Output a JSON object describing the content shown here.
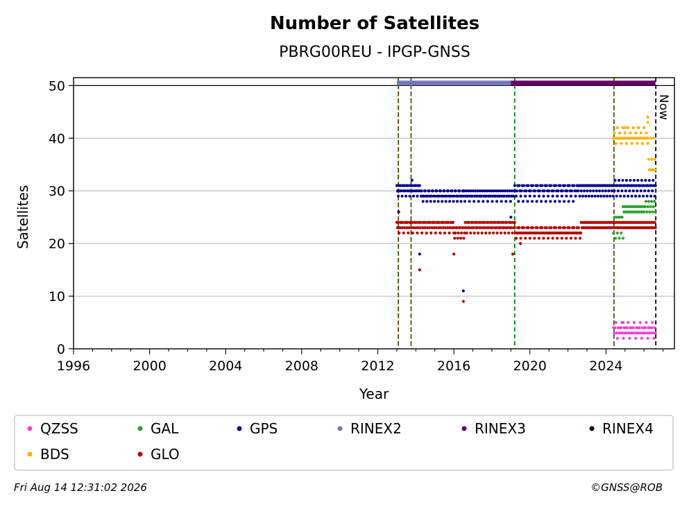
{
  "chart_data": {
    "type": "scatter",
    "title": "Number of Satellites",
    "subtitle": "PBRG00REU - IPGP-GNSS",
    "xlabel": "Year",
    "ylabel": "Satellites",
    "xlim": [
      1996,
      2027.6
    ],
    "ylim": [
      0,
      51.5
    ],
    "x_ticks": [
      "1996",
      "2000",
      "2004",
      "2008",
      "2012",
      "2016",
      "2020",
      "2024"
    ],
    "y_ticks": [
      "0",
      "10",
      "20",
      "30",
      "40",
      "50"
    ],
    "grid": "y",
    "now_label": "Now",
    "now_x": 2026.62,
    "reference_line_y": 50,
    "event_lines": [
      {
        "x": 2013.08,
        "kind": "station-change"
      },
      {
        "x": 2013.75,
        "kind": "station-change"
      },
      {
        "x": 2019.2,
        "kind": "receiver-change"
      },
      {
        "x": 2024.42,
        "kind": "station-change"
      }
    ],
    "rinex_bars": [
      {
        "name": "RINEX2",
        "x_start": 2013.0,
        "x_end": 2019.0,
        "y": 51
      },
      {
        "name": "RINEX3",
        "x_start": 2019.0,
        "x_end": 2026.6,
        "y": 51
      }
    ],
    "series": [
      {
        "name": "QZSS",
        "color": "#ee44cc",
        "segments": [
          {
            "x_start": 2024.4,
            "x_end": 2026.6,
            "step": 0.04,
            "values": [
              4,
              3,
              4,
              5,
              3,
              2,
              4,
              3
            ]
          }
        ],
        "points": [
          [
            2024.9,
            5
          ]
        ]
      },
      {
        "name": "GAL",
        "color": "#2ca02c",
        "segments": [
          {
            "x_start": 2024.4,
            "x_end": 2024.9,
            "step": 0.05,
            "values": [
              22,
              25,
              21,
              25
            ]
          },
          {
            "x_start": 2024.9,
            "x_end": 2026.0,
            "step": 0.05,
            "values": [
              27,
              26,
              27,
              26
            ]
          },
          {
            "x_start": 2026.0,
            "x_end": 2026.6,
            "step": 0.05,
            "values": [
              26,
              27,
              28
            ]
          }
        ],
        "points": []
      },
      {
        "name": "GPS",
        "color": "#00008b",
        "segments": [
          {
            "x_start": 2013.0,
            "x_end": 2014.3,
            "step": 0.04,
            "values": [
              31,
              30,
              29,
              31,
              30
            ]
          },
          {
            "x_start": 2014.3,
            "x_end": 2016.5,
            "step": 0.04,
            "values": [
              30,
              29,
              28,
              29,
              30
            ]
          },
          {
            "x_start": 2016.5,
            "x_end": 2019.2,
            "step": 0.04,
            "values": [
              29,
              30,
              28,
              29,
              30,
              29
            ]
          },
          {
            "x_start": 2019.2,
            "x_end": 2022.5,
            "step": 0.04,
            "values": [
              31,
              30,
              29,
              30,
              31,
              28
            ]
          },
          {
            "x_start": 2022.5,
            "x_end": 2024.4,
            "step": 0.04,
            "values": [
              31,
              30,
              31,
              29
            ]
          },
          {
            "x_start": 2024.4,
            "x_end": 2026.6,
            "step": 0.04,
            "values": [
              31,
              30,
              32,
              31,
              29
            ]
          }
        ],
        "points": [
          [
            2013.1,
            26
          ],
          [
            2013.8,
            32
          ],
          [
            2014.2,
            18
          ],
          [
            2016.5,
            11
          ],
          [
            2016.0,
            22
          ],
          [
            2019.0,
            25
          ]
        ]
      },
      {
        "name": "RINEX2",
        "color": "#7777bb",
        "segments": [],
        "points": []
      },
      {
        "name": "RINEX3",
        "color": "#660066",
        "segments": [],
        "points": []
      },
      {
        "name": "RINEX4",
        "color": "#220022",
        "segments": [],
        "points": []
      },
      {
        "name": "BDS",
        "color": "#ffb000",
        "segments": [
          {
            "x_start": 2024.4,
            "x_end": 2026.2,
            "step": 0.04,
            "values": [
              40,
              41,
              40,
              39,
              40,
              42,
              40
            ]
          },
          {
            "x_start": 2026.2,
            "x_end": 2026.6,
            "step": 0.04,
            "values": [
              40,
              36,
              34,
              34
            ]
          }
        ],
        "points": [
          [
            2026.2,
            44
          ],
          [
            2026.2,
            43
          ],
          [
            2025.0,
            42
          ],
          [
            2025.7,
            42
          ]
        ]
      },
      {
        "name": "GLO",
        "color": "#b30000",
        "segments": [
          {
            "x_start": 2013.0,
            "x_end": 2016.0,
            "step": 0.04,
            "values": [
              24,
              23,
              24,
              22,
              23,
              24
            ]
          },
          {
            "x_start": 2016.0,
            "x_end": 2016.6,
            "step": 0.04,
            "values": [
              23,
              21,
              22,
              23
            ]
          },
          {
            "x_start": 2016.6,
            "x_end": 2019.2,
            "step": 0.04,
            "values": [
              24,
              23,
              22,
              24,
              23
            ]
          },
          {
            "x_start": 2019.2,
            "x_end": 2022.7,
            "step": 0.04,
            "values": [
              23,
              22,
              21,
              22,
              23,
              22
            ]
          },
          {
            "x_start": 2022.7,
            "x_end": 2024.4,
            "step": 0.04,
            "values": [
              24,
              23,
              24,
              23
            ]
          },
          {
            "x_start": 2024.4,
            "x_end": 2026.6,
            "step": 0.04,
            "values": [
              24,
              23,
              24,
              23
            ]
          }
        ],
        "points": [
          [
            2014.2,
            15
          ],
          [
            2016.5,
            9
          ],
          [
            2016.0,
            18
          ],
          [
            2019.1,
            18
          ],
          [
            2019.5,
            20
          ],
          [
            2013.1,
            23
          ]
        ]
      }
    ],
    "legend": {
      "placement": "bottom",
      "entries": [
        {
          "name": "QZSS",
          "color": "#ee44cc"
        },
        {
          "name": "GAL",
          "color": "#2ca02c"
        },
        {
          "name": "GPS",
          "color": "#00008b"
        },
        {
          "name": "RINEX2",
          "color": "#7777bb"
        },
        {
          "name": "RINEX3",
          "color": "#660066"
        },
        {
          "name": "RINEX4",
          "color": "#220022"
        },
        {
          "name": "BDS",
          "color": "#ffb000"
        },
        {
          "name": "GLO",
          "color": "#b30000"
        }
      ]
    }
  },
  "footer": {
    "timestamp": "Fri Aug 14 12:31:02 2026",
    "credit": "©GNSS@ROB"
  }
}
